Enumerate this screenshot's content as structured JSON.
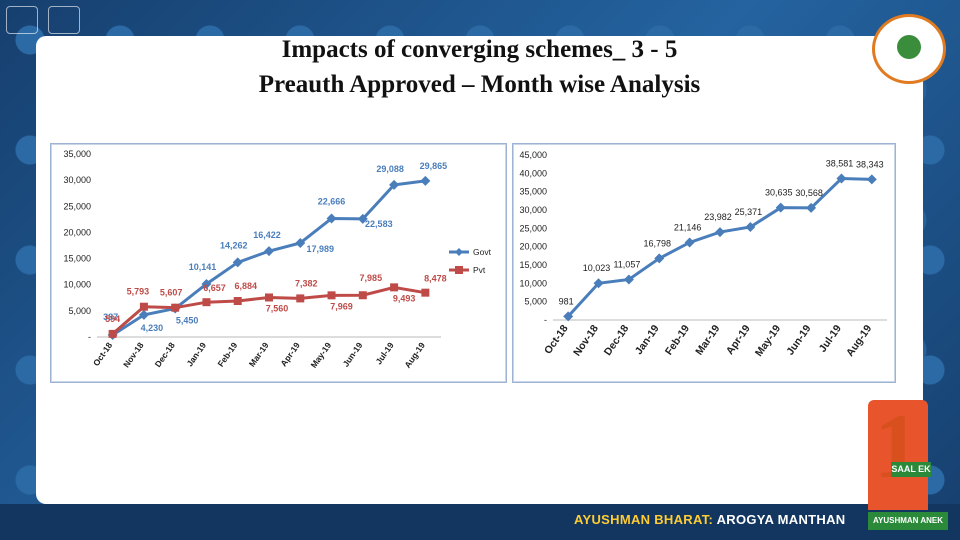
{
  "slide": {
    "title_line1": "Impacts of converging schemes_ 3 - 5",
    "title_line2": "Preauth Approved – Month wise Analysis"
  },
  "footer": {
    "brand_part1": "AYUSHMAN BHARAT:",
    "brand_part2": "AROGYA MANTHAN",
    "badge_text": "SAAL EK",
    "badge_sub": "AYUSHMAN ANEK"
  },
  "colors": {
    "govt": "#4a7ebb",
    "pvt": "#be4b48",
    "series_single": "#4a7ebb"
  },
  "chart_data": [
    {
      "type": "line",
      "categories": [
        "Oct-18",
        "Nov-18",
        "Dec-18",
        "Jan-19",
        "Feb-19",
        "Mar-19",
        "Apr-19",
        "May-19",
        "Jun-19",
        "Jul-19",
        "Aug-19"
      ],
      "series": [
        {
          "name": "Govt",
          "values": [
            387,
            4230,
            5450,
            10141,
            14262,
            16422,
            17989,
            22666,
            22583,
            29088,
            29865
          ]
        },
        {
          "name": "Pvt",
          "values": [
            594,
            5793,
            5607,
            6657,
            6884,
            7560,
            7382,
            7969,
            7985,
            9493,
            8478
          ]
        }
      ],
      "y_ticks": [
        "-",
        "5,000",
        "10,000",
        "15,000",
        "20,000",
        "25,000",
        "30,000",
        "35,000"
      ],
      "data_labels_govt": [
        "387",
        "4,230",
        "5,450",
        "10,141",
        "14,262",
        "16,422",
        "17,989",
        "22,666",
        "22,583",
        "29,088",
        "29,865"
      ],
      "data_labels_pvt": [
        "594",
        "5,793",
        "5,607",
        "6,657",
        "6,884",
        "7,560",
        "7,382",
        "7,969",
        "7,985",
        "9,493",
        "8,478"
      ],
      "ylim": [
        0,
        35000
      ],
      "legend": "right",
      "grid": false
    },
    {
      "type": "line",
      "categories": [
        "Oct-18",
        "Nov-18",
        "Dec-18",
        "Jan-19",
        "Feb-19",
        "Mar-19",
        "Apr-19",
        "May-19",
        "Jun-19",
        "Jul-19",
        "Aug-19"
      ],
      "series": [
        {
          "values": [
            981,
            10023,
            11057,
            16798,
            21146,
            23982,
            25371,
            30635,
            30568,
            38581,
            38343
          ]
        }
      ],
      "y_ticks": [
        "-",
        "5,000",
        "10,000",
        "15,000",
        "20,000",
        "25,000",
        "30,000",
        "35,000",
        "40,000",
        "45,000"
      ],
      "data_labels": [
        "981",
        "10,023",
        "11,057",
        "16,798",
        "21,146",
        "23,982",
        "25,371",
        "30,635",
        "30,568",
        "38,581",
        "38,343"
      ],
      "ylim": [
        0,
        45000
      ],
      "grid": false
    }
  ]
}
